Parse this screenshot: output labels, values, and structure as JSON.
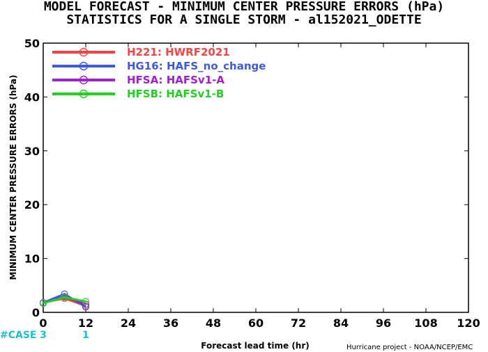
{
  "header": {
    "title_line1": "MODEL FORECAST - MINIMUM CENTER PRESSURE ERRORS (hPa)",
    "title_line2": "STATISTICS FOR A SINGLE STORM - al152021_ODETTE"
  },
  "footer": {
    "credit": "Hurricane project - NOAA/NCEP/EMC"
  },
  "cases": {
    "label": "#CASE",
    "x": [
      0,
      12
    ],
    "counts": [
      "3",
      "1"
    ]
  },
  "chart_data": {
    "type": "line",
    "xlabel": "Forecast lead time (hr)",
    "ylabel": "MINIMUM CENTER PRESSURE ERRORS (hPa)",
    "xlim": [
      0,
      120
    ],
    "ylim": [
      0,
      50
    ],
    "xticks": [
      0,
      12,
      24,
      36,
      48,
      60,
      72,
      84,
      96,
      108,
      120
    ],
    "yticks": [
      0,
      10,
      20,
      30,
      40,
      50
    ],
    "grid": false,
    "legend_position": "top-left",
    "x": [
      0,
      6,
      12
    ],
    "series": [
      {
        "name": "H221: HWRF2021",
        "color": "#ff4040",
        "values": [
          1.8,
          2.6,
          1.2
        ]
      },
      {
        "name": "HG16: HAFS_no_change",
        "color": "#3c5ae6",
        "values": [
          1.8,
          3.4,
          1.0
        ]
      },
      {
        "name": "HFSA: HAFSv1-A",
        "color": "#a020d0",
        "values": [
          1.7,
          2.9,
          1.5
        ]
      },
      {
        "name": "HFSB: HAFSv1-B",
        "color": "#20d020",
        "values": [
          1.7,
          2.8,
          2.0
        ]
      }
    ]
  }
}
